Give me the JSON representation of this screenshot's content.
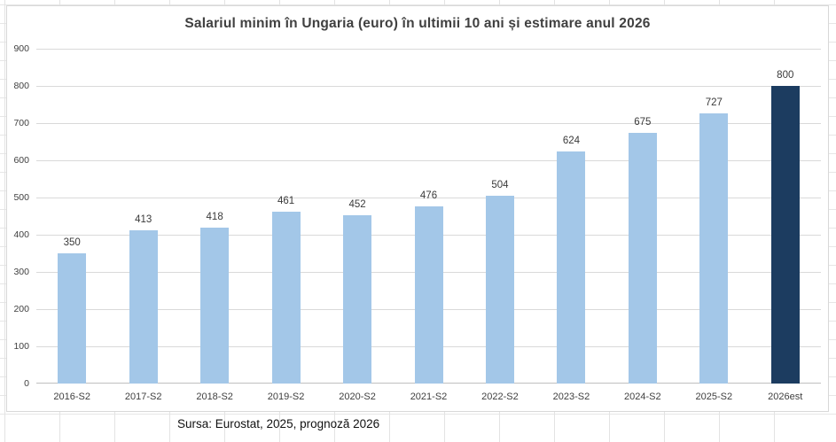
{
  "chart_data": {
    "type": "bar",
    "title": "Salariul minim în Ungaria (euro) în ultimii 10 ani și estimare anul 2026",
    "categories": [
      "2016-S2",
      "2017-S2",
      "2018-S2",
      "2019-S2",
      "2020-S2",
      "2021-S2",
      "2022-S2",
      "2023-S2",
      "2024-S2",
      "2025-S2",
      "2026est"
    ],
    "values": [
      350,
      413,
      418,
      461,
      452,
      476,
      504,
      624,
      675,
      727,
      800
    ],
    "xlabel": "",
    "ylabel": "",
    "ylim": [
      0,
      900
    ],
    "ytick_interval": 100,
    "grid": true,
    "legend": false,
    "value_labels_shown": true,
    "highlight_category": "2026est",
    "colors": {
      "bar_default": "#A3C7E8",
      "bar_highlight": "#1C3C60",
      "gridline": "#D9D9D9",
      "axis_line": "#BFBFBF",
      "label_text": "#404040"
    },
    "source": "Sursa: Eurostat, 2025, prognoză 2026"
  }
}
